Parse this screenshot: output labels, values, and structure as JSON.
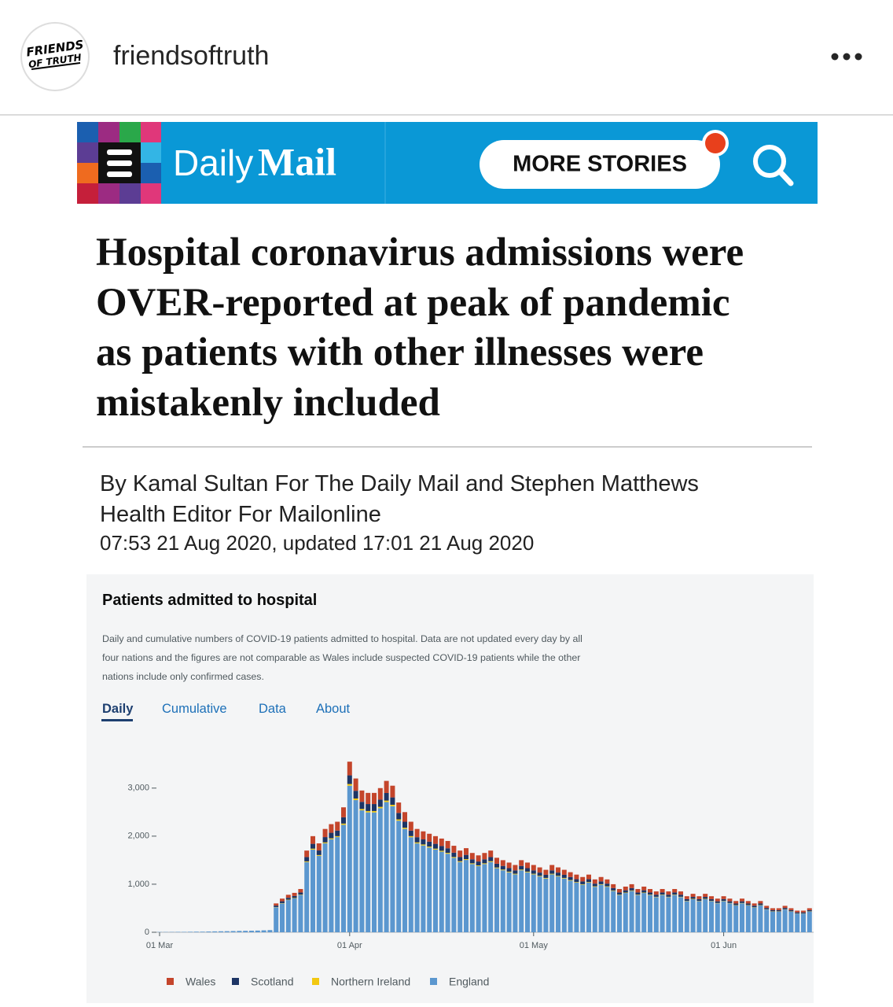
{
  "post": {
    "username": "friendsoftruth",
    "logo": [
      "FRIENDS",
      "OF TRUTH"
    ]
  },
  "banner": {
    "brand_light": "Daily",
    "brand_bold": "Mail",
    "button": "MORE STORIES"
  },
  "article": {
    "headline": [
      "Hospital coronavirus admissions were",
      "OVER-reported at peak of pandemic",
      "as patients with other illnesses were",
      "mistakenly included"
    ],
    "byline": [
      "By Kamal Sultan For The Daily Mail and Stephen Matthews",
      "Health Editor For Mailonline"
    ],
    "timestamp": "07:53 21 Aug 2020, updated 17:01 21 Aug 2020"
  },
  "chart_tabs": [
    "Daily",
    "Cumulative",
    "Data",
    "About"
  ],
  "chart_data": {
    "type": "bar",
    "stacked": true,
    "title": "Patients admitted to hospital",
    "subtitle": [
      "Daily and cumulative numbers of COVID-19 patients admitted to hospital. Data are not updated every day by all",
      "four nations and the figures are not comparable as Wales include suspected COVID-19 patients while the other",
      "nations include only confirmed cases."
    ],
    "categories": [
      "01 Mar",
      null,
      null,
      null,
      null,
      null,
      null,
      null,
      null,
      null,
      null,
      null,
      null,
      null,
      null,
      null,
      null,
      null,
      null,
      null,
      null,
      null,
      null,
      null,
      null,
      null,
      null,
      null,
      null,
      null,
      null,
      "01 Apr",
      null,
      null,
      null,
      null,
      null,
      null,
      null,
      null,
      null,
      null,
      null,
      null,
      null,
      null,
      null,
      null,
      null,
      null,
      null,
      null,
      null,
      null,
      null,
      null,
      null,
      null,
      null,
      null,
      null,
      "01 May",
      null,
      null,
      null,
      null,
      null,
      null,
      null,
      null,
      null,
      null,
      null,
      null,
      null,
      null,
      null,
      null,
      null,
      null,
      null,
      null,
      null,
      null,
      null,
      null,
      null,
      null,
      null,
      null,
      null,
      null,
      "01 Jun",
      null,
      null,
      null,
      null,
      null,
      null,
      null,
      null,
      null,
      null,
      null,
      null,
      null,
      null
    ],
    "series": [
      {
        "name": "Wales",
        "color": "#c4452b",
        "values": [
          0,
          0,
          0,
          0,
          0,
          0,
          0,
          0,
          0,
          0,
          0,
          0,
          0,
          0,
          0,
          0,
          0,
          0,
          0,
          45,
          55,
          62,
          65,
          72,
          135,
          160,
          148,
          170,
          180,
          184,
          208,
          285,
          256,
          236,
          232,
          232,
          240,
          252,
          244,
          216,
          200,
          184,
          172,
          168,
          164,
          160,
          156,
          152,
          144,
          136,
          140,
          132,
          128,
          132,
          136,
          124,
          120,
          116,
          112,
          120,
          116,
          112,
          108,
          104,
          112,
          108,
          104,
          100,
          96,
          92,
          96,
          88,
          92,
          88,
          80,
          72,
          76,
          80,
          72,
          76,
          72,
          68,
          72,
          68,
          72,
          68,
          60,
          64,
          60,
          64,
          60,
          56,
          60,
          56,
          52,
          56,
          52,
          48,
          52,
          44,
          40,
          40,
          44,
          40,
          36,
          36,
          40
        ]
      },
      {
        "name": "Scotland",
        "color": "#1d3565",
        "values": [
          0,
          0,
          0,
          0,
          0,
          0,
          0,
          0,
          0,
          0,
          0,
          0,
          0,
          0,
          0,
          0,
          0,
          0,
          0,
          30,
          38,
          40,
          42,
          45,
          90,
          100,
          95,
          110,
          115,
          116,
          130,
          180,
          160,
          148,
          145,
          145,
          150,
          158,
          153,
          135,
          125,
          115,
          108,
          105,
          103,
          100,
          98,
          95,
          90,
          85,
          88,
          83,
          80,
          83,
          85,
          78,
          75,
          73,
          70,
          75,
          73,
          70,
          68,
          65,
          70,
          68,
          65,
          63,
          60,
          58,
          60,
          55,
          58,
          55,
          50,
          45,
          48,
          50,
          45,
          48,
          45,
          43,
          45,
          43,
          45,
          43,
          38,
          40,
          38,
          40,
          38,
          35,
          38,
          35,
          33,
          35,
          33,
          30,
          33,
          28,
          25,
          25,
          28,
          25,
          23,
          23,
          25
        ]
      },
      {
        "name": "Northern Ireland",
        "color": "#f2c811",
        "values": [
          0,
          0,
          0,
          0,
          0,
          0,
          0,
          0,
          0,
          0,
          0,
          0,
          0,
          0,
          0,
          0,
          0,
          0,
          0,
          5,
          7,
          8,
          8,
          8,
          15,
          20,
          17,
          20,
          20,
          20,
          27,
          35,
          34,
          29,
          29,
          29,
          30,
          31,
          30,
          27,
          25,
          23,
          21,
          21,
          20,
          20,
          19,
          19,
          18,
          17,
          17,
          16,
          16,
          16,
          17,
          15,
          15,
          14,
          14,
          15,
          14,
          14,
          13,
          13,
          14,
          13,
          13,
          12,
          12,
          11,
          12,
          11,
          11,
          11,
          10,
          9,
          9,
          10,
          9,
          9,
          9,
          8,
          9,
          8,
          9,
          8,
          7,
          8,
          7,
          8,
          7,
          7,
          7,
          7,
          6,
          7,
          6,
          6,
          6,
          5,
          5,
          5,
          5,
          5,
          4,
          4,
          5
        ]
      },
      {
        "name": "England",
        "color": "#5b97cf",
        "values": [
          5,
          5,
          6,
          8,
          8,
          10,
          12,
          12,
          15,
          18,
          20,
          22,
          25,
          28,
          30,
          32,
          35,
          40,
          45,
          520,
          600,
          670,
          705,
          775,
          1460,
          1720,
          1590,
          1850,
          1935,
          1980,
          2235,
          3050,
          2750,
          2537,
          2494,
          2494,
          2580,
          2709,
          2623,
          2322,
          2150,
          1978,
          1849,
          1806,
          1763,
          1720,
          1677,
          1634,
          1548,
          1462,
          1505,
          1419,
          1376,
          1419,
          1462,
          1333,
          1290,
          1247,
          1204,
          1290,
          1247,
          1204,
          1161,
          1118,
          1204,
          1161,
          1118,
          1075,
          1032,
          989,
          1032,
          946,
          989,
          946,
          860,
          774,
          817,
          860,
          774,
          817,
          774,
          731,
          774,
          731,
          774,
          731,
          645,
          688,
          645,
          688,
          645,
          602,
          645,
          602,
          559,
          602,
          559,
          516,
          559,
          473,
          430,
          430,
          473,
          430,
          387,
          387,
          430
        ]
      }
    ],
    "ylim": [
      0,
      3700
    ],
    "yticks": [
      0,
      {
        "value": 1000,
        "label": "1,000"
      },
      {
        "value": 2000,
        "label": "2,000"
      },
      {
        "value": 3000,
        "label": "3,000"
      }
    ],
    "grid": false
  }
}
